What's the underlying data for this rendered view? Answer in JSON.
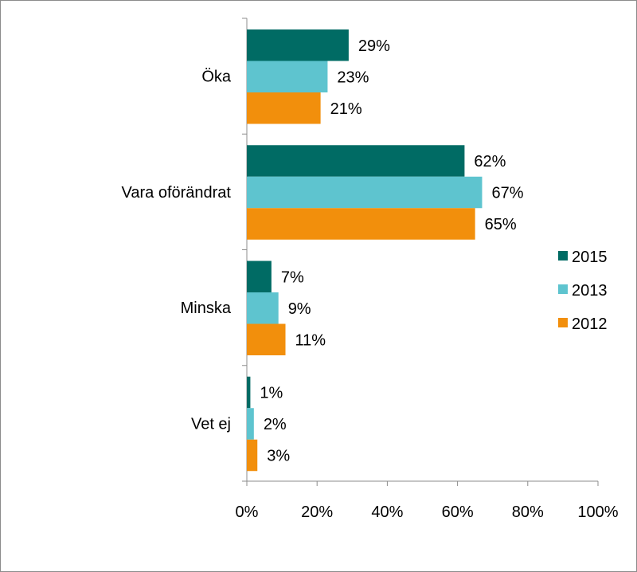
{
  "chart_data": {
    "type": "bar",
    "orientation": "horizontal",
    "categories": [
      "Öka",
      "Vara oförändrat",
      "Minska",
      "Vet ej"
    ],
    "series": [
      {
        "name": "2015",
        "color": "#006b64",
        "values": [
          29,
          62,
          7,
          1
        ],
        "labels": [
          "29%",
          "62%",
          "7%",
          "1%"
        ]
      },
      {
        "name": "2013",
        "color": "#5ec4cf",
        "values": [
          23,
          67,
          9,
          2
        ],
        "labels": [
          "23%",
          "67%",
          "9%",
          "2%"
        ]
      },
      {
        "name": "2012",
        "color": "#f28f0c",
        "values": [
          21,
          65,
          11,
          3
        ],
        "labels": [
          "21%",
          "65%",
          "11%",
          "3%"
        ]
      }
    ],
    "xlim": [
      0,
      100
    ],
    "xticks": [
      0,
      20,
      40,
      60,
      80,
      100
    ],
    "xtick_labels": [
      "0%",
      "20%",
      "40%",
      "60%",
      "80%",
      "100%"
    ],
    "grid": false,
    "legend_position": "right",
    "title": "",
    "xlabel": "",
    "ylabel": ""
  }
}
